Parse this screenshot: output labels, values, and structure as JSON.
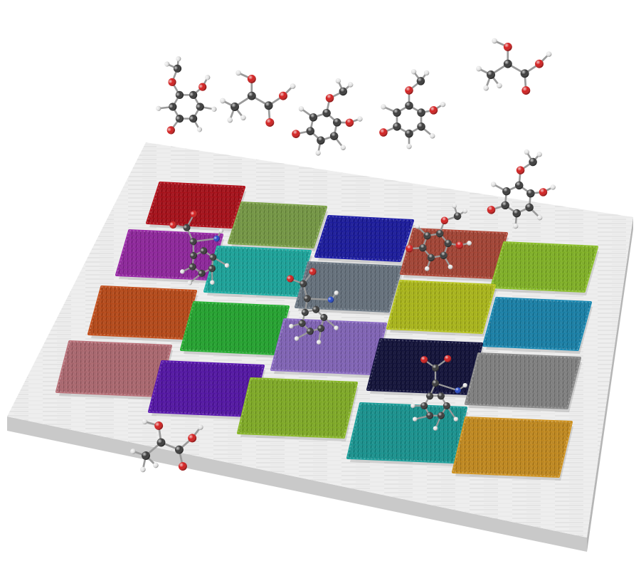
{
  "scene": {
    "background": "#ffffff",
    "slab": {
      "top_color": "#eeeeee",
      "side_color": "#c9c9c9",
      "edge_color": "#b5b5b5"
    },
    "patch_rows": [
      [
        "#b3121c",
        "#7ea34a",
        "#1e1ea8"
      ],
      [
        "#9a2aa8",
        "#1fb0a6",
        "#6e7a86",
        "#b04a3a",
        "#8bbf2a"
      ],
      [
        "#c4501c",
        "#28b034",
        "#b7c41e",
        "#1c8ab4"
      ],
      [
        "#b87078",
        "#5a18b0",
        "#8b6cc4",
        "#14143e",
        "#8a8a8a"
      ],
      [
        "#8ab82a",
        "#1c9e9a",
        "#d09422"
      ]
    ],
    "molecule_kinds": [
      "lactic-acid",
      "guaiacol-derivative",
      "amine-derivative"
    ],
    "atom_colors": {
      "carbon": "#3a3a3a",
      "oxygen": "#d21e1e",
      "hydrogen": "#e6e6e6",
      "nitrogen": "#2448c8",
      "bond": "#9a9a9a"
    }
  }
}
